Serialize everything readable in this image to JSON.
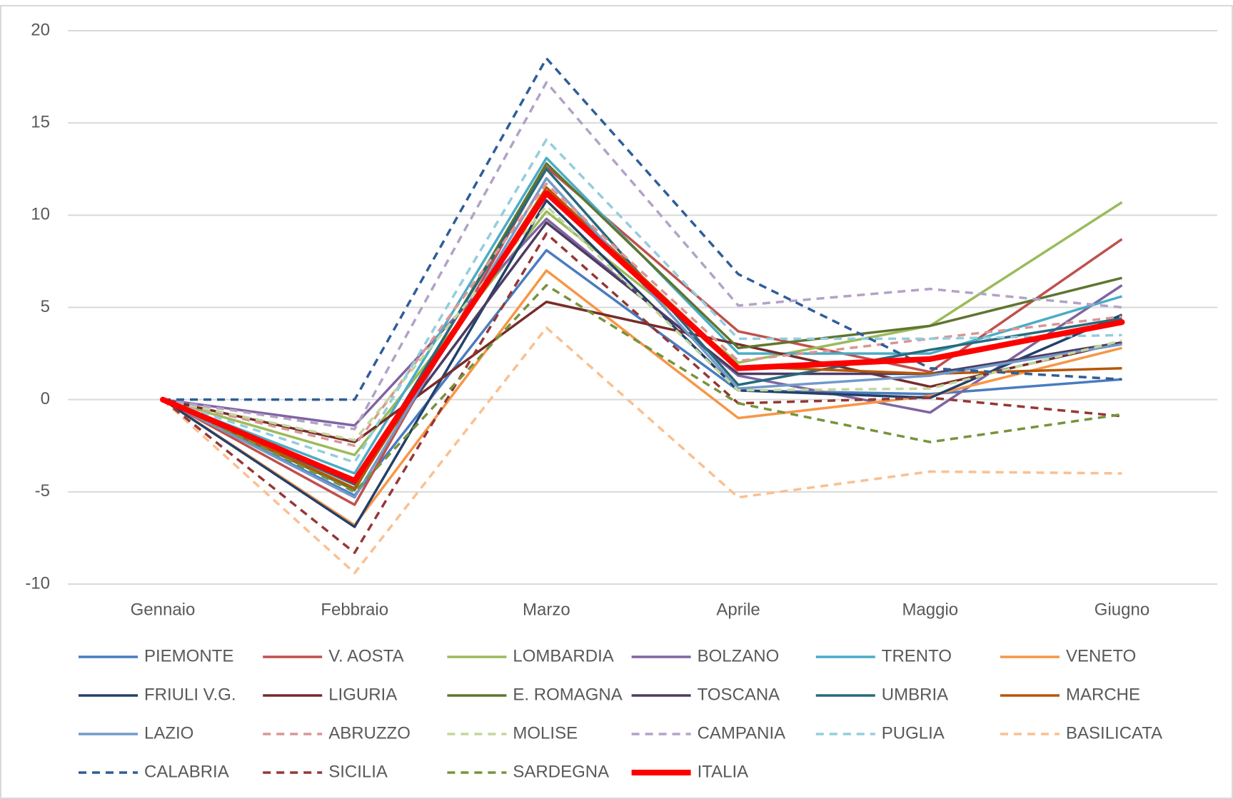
{
  "chart_data": {
    "type": "line",
    "categories": [
      "Gennaio",
      "Febbraio",
      "Marzo",
      "Aprile",
      "Maggio",
      "Giugno"
    ],
    "ylim": [
      -10,
      20
    ],
    "yticks": [
      -10,
      -5,
      0,
      5,
      10,
      15,
      20
    ],
    "grid": true,
    "series": [
      {
        "name": "PIEMONTE",
        "color": "#4a7cc0",
        "values": [
          0,
          -5.2,
          8.1,
          0.5,
          0.3,
          1.1
        ]
      },
      {
        "name": "V. AOSTA",
        "color": "#c0504d",
        "values": [
          0,
          -5.7,
          12.6,
          3.7,
          1.5,
          8.7
        ]
      },
      {
        "name": "LOMBARDIA",
        "color": "#9bbb59",
        "values": [
          0,
          -3.0,
          10.2,
          2.0,
          4.0,
          10.7
        ]
      },
      {
        "name": "BOLZANO",
        "color": "#8064a2",
        "values": [
          0,
          -1.4,
          9.8,
          1.3,
          -0.7,
          6.2
        ]
      },
      {
        "name": "TRENTO",
        "color": "#4bacc6",
        "values": [
          0,
          -4.0,
          13.1,
          2.5,
          2.5,
          5.6
        ]
      },
      {
        "name": "VENETO",
        "color": "#f79646",
        "values": [
          0,
          -6.8,
          7.0,
          -1.0,
          0.2,
          2.8
        ]
      },
      {
        "name": "FRIULI V.G.",
        "color": "#23406b",
        "values": [
          0,
          -6.9,
          10.8,
          0.5,
          0.1,
          4.6
        ]
      },
      {
        "name": "LIGURIA",
        "color": "#772c2a",
        "values": [
          0,
          -2.3,
          5.3,
          3.0,
          0.7,
          3.1
        ]
      },
      {
        "name": "E. ROMAGNA",
        "color": "#5f7530",
        "values": [
          0,
          -4.9,
          12.8,
          2.8,
          4.0,
          6.6
        ]
      },
      {
        "name": "TOSCANA",
        "color": "#4d3b62",
        "values": [
          0,
          -4.3,
          9.6,
          1.4,
          1.4,
          3.1
        ]
      },
      {
        "name": "UMBRIA",
        "color": "#276a7c",
        "values": [
          0,
          -4.6,
          12.5,
          0.8,
          2.7,
          4.4
        ]
      },
      {
        "name": "MARCHE",
        "color": "#b65708",
        "values": [
          0,
          -4.8,
          11.5,
          1.8,
          1.4,
          1.7
        ]
      },
      {
        "name": "LAZIO",
        "color": "#729aca",
        "values": [
          0,
          -5.3,
          12.0,
          0.6,
          1.3,
          3.0
        ]
      },
      {
        "name": "ABRUZZO",
        "color": "#d99694",
        "dashed": true,
        "values": [
          0,
          -2.5,
          11.7,
          2.1,
          3.3,
          4.5
        ]
      },
      {
        "name": "MOLISE",
        "color": "#c3d69b",
        "dashed": true,
        "values": [
          0,
          -2.2,
          10.5,
          0.5,
          0.6,
          3.2
        ]
      },
      {
        "name": "CAMPANIA",
        "color": "#b3a2c7",
        "dashed": true,
        "values": [
          0,
          -1.6,
          17.2,
          5.1,
          6.0,
          5.0
        ]
      },
      {
        "name": "PUGLIA",
        "color": "#93cddd",
        "dashed": true,
        "values": [
          0,
          -3.4,
          14.1,
          3.3,
          3.3,
          3.5
        ]
      },
      {
        "name": "BASILICATA",
        "color": "#fac090",
        "dashed": true,
        "values": [
          0,
          -9.4,
          3.9,
          -5.3,
          -3.9,
          -4.0
        ]
      },
      {
        "name": "CALABRIA",
        "color": "#2e5d9a",
        "dashed": true,
        "values": [
          0,
          0,
          18.5,
          6.8,
          1.7,
          1.1
        ]
      },
      {
        "name": "SICILIA",
        "color": "#953735",
        "dashed": true,
        "values": [
          0,
          -8.3,
          9.0,
          -0.2,
          0.1,
          -0.9
        ]
      },
      {
        "name": "SARDEGNA",
        "color": "#77933c",
        "dashed": true,
        "values": [
          0,
          -5.0,
          6.2,
          -0.2,
          -2.3,
          -0.8
        ]
      },
      {
        "name": "ITALIA",
        "color": "#ff0000",
        "bold": true,
        "values": [
          0,
          -4.4,
          11.2,
          1.7,
          2.2,
          4.2
        ]
      }
    ]
  }
}
